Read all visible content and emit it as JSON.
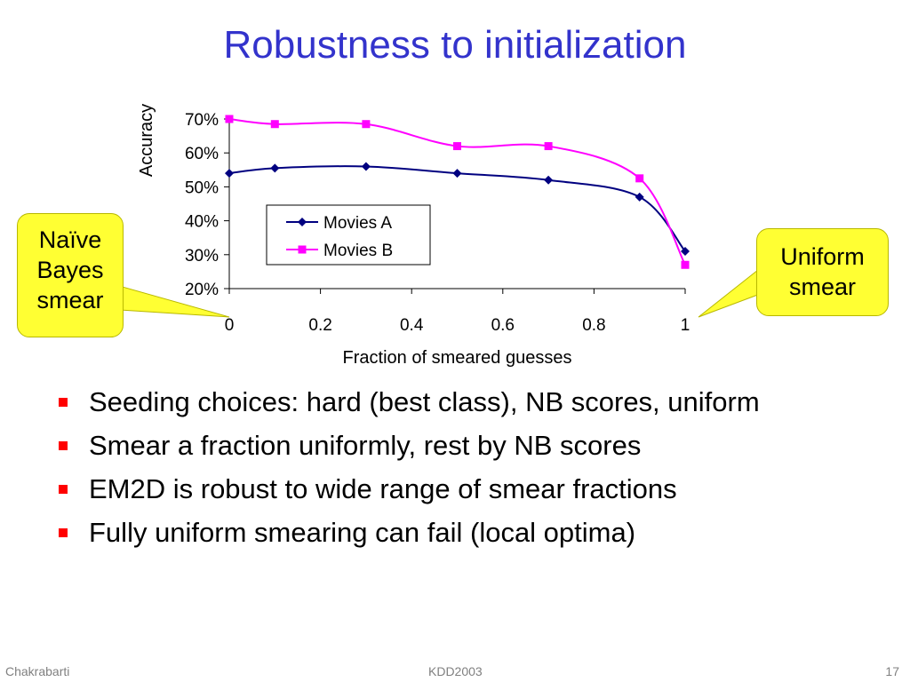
{
  "slide": {
    "title": "Robustness to initialization",
    "footer_left": "Chakrabarti",
    "footer_center": "KDD2003",
    "footer_right": "17",
    "title_color": "#3333cc",
    "bullet_color": "#ff0000",
    "callout_color": "#ffff33"
  },
  "callouts": {
    "left": "Naïve Bayes smear",
    "right": "Uniform smear"
  },
  "bullets": [
    "Seeding choices: hard (best class), NB scores, uniform",
    "Smear a fraction uniformly, rest by NB scores",
    "EM2D is robust to wide range of smear fractions",
    "Fully uniform smearing can fail (local optima)"
  ],
  "chart_data": {
    "type": "line",
    "xlabel": "Fraction of smeared guesses",
    "ylabel": "Accuracy",
    "xlim": [
      0,
      1
    ],
    "ylim": [
      0.2,
      0.7
    ],
    "x_ticks": [
      0,
      0.2,
      0.4,
      0.6,
      0.8,
      1
    ],
    "x_tick_labels": [
      "0",
      "0.2",
      "0.4",
      "0.6",
      "0.8",
      "1"
    ],
    "y_ticks": [
      0.2,
      0.3,
      0.4,
      0.5,
      0.6,
      0.7
    ],
    "y_tick_labels": [
      "20%",
      "30%",
      "40%",
      "50%",
      "60%",
      "70%"
    ],
    "grid": false,
    "legend_position": "center",
    "series": [
      {
        "name": "Movies A",
        "color": "#000080",
        "marker": "diamond",
        "x": [
          0,
          0.1,
          0.3,
          0.5,
          0.7,
          0.9,
          1
        ],
        "values": [
          0.54,
          0.555,
          0.56,
          0.54,
          0.52,
          0.47,
          0.31
        ]
      },
      {
        "name": "Movies B",
        "color": "#ff00ff",
        "marker": "square",
        "x": [
          0,
          0.1,
          0.3,
          0.5,
          0.7,
          0.9,
          1
        ],
        "values": [
          0.7,
          0.685,
          0.685,
          0.62,
          0.62,
          0.525,
          0.27
        ]
      }
    ]
  }
}
